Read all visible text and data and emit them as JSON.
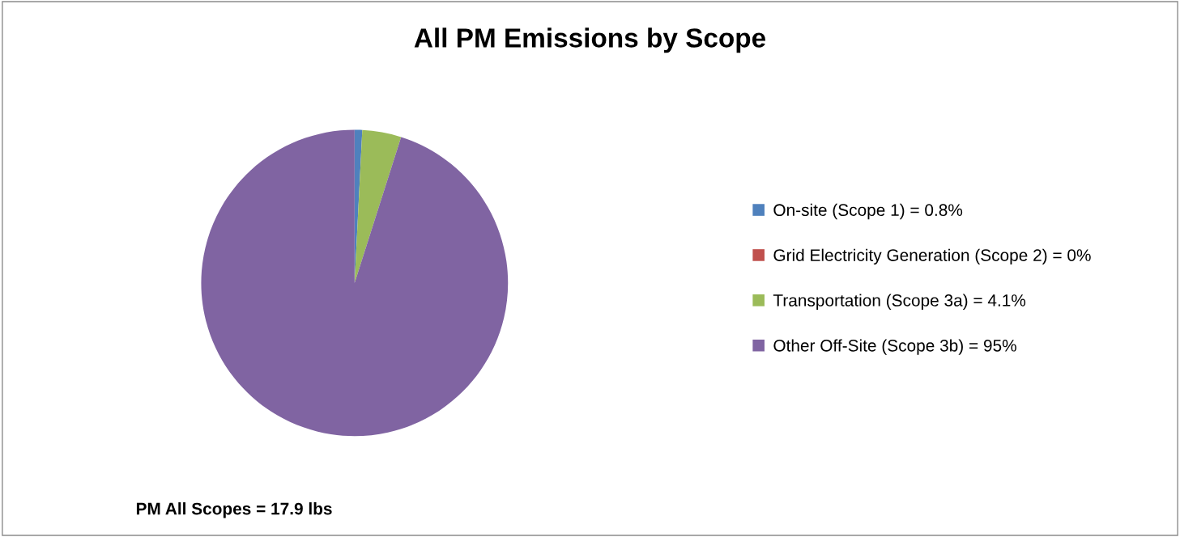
{
  "chart_data": {
    "type": "pie",
    "title": "All PM Emissions by Scope",
    "categories": [
      "On-site (Scope 1) = 0.8%",
      "Grid Electricity Generation (Scope 2) = 0%",
      "Transportation (Scope 3a) = 4.1%",
      "Other Off-Site (Scope 3b) = 95%"
    ],
    "values": [
      0.8,
      0,
      4.1,
      95
    ],
    "colors": [
      "#4f81bd",
      "#c0504d",
      "#9bbb59",
      "#8064a2"
    ],
    "legend": "right",
    "annotations": [
      "PM All Scopes = 17.9 lbs"
    ]
  }
}
